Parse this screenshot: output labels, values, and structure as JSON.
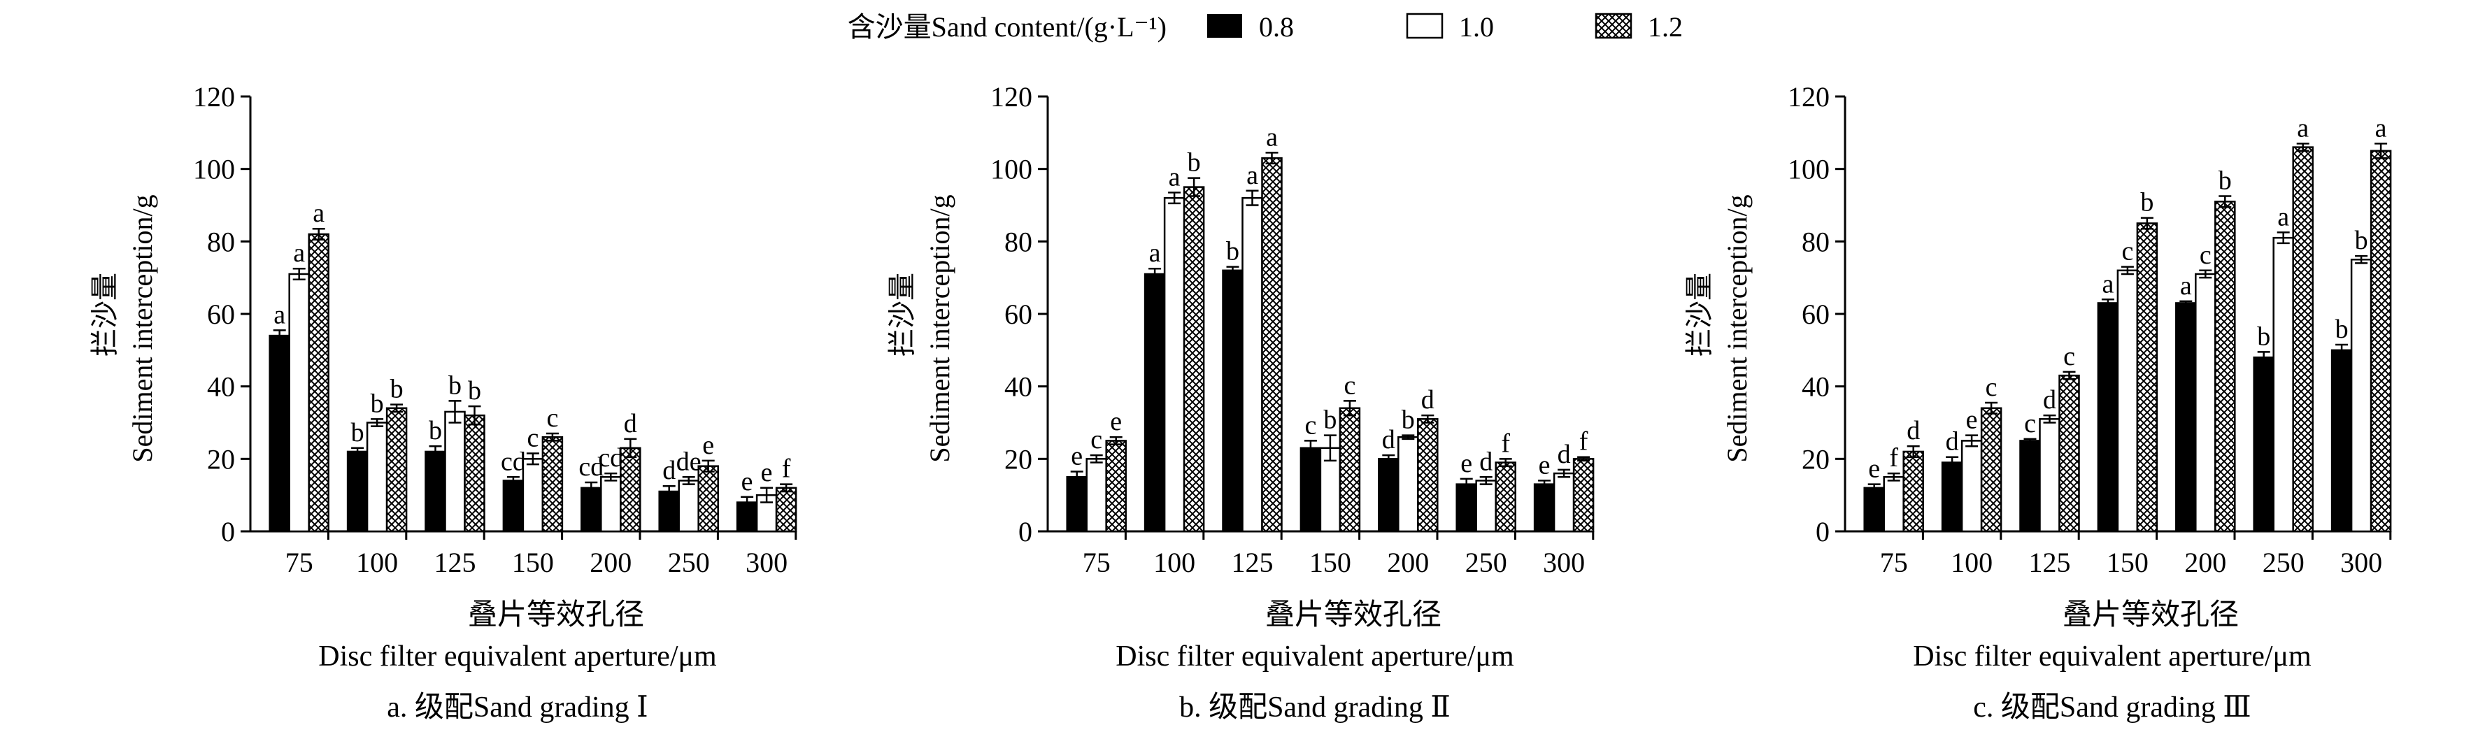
{
  "legend": {
    "title": "含沙量Sand content/(g·L⁻¹)",
    "items": [
      {
        "label": "0.8",
        "pattern": "solid-black"
      },
      {
        "label": "1.0",
        "pattern": "white"
      },
      {
        "label": "1.2",
        "pattern": "crosshatch"
      }
    ]
  },
  "colors": {
    "ink": "#000000",
    "paper": "#ffffff"
  },
  "chart_data": [
    {
      "type": "bar",
      "panel_caption": "a. 级配Sand grading Ⅰ",
      "xlabel_cn": "叠片等效孔径",
      "xlabel": "Disc filter equivalent aperture/μm",
      "ylabel_cn": "拦沙量",
      "ylabel": "Sediment interception/g",
      "ylim": [
        0,
        120
      ],
      "yticks": [
        0,
        20,
        40,
        60,
        80,
        100,
        120
      ],
      "categories": [
        "75",
        "100",
        "125",
        "150",
        "200",
        "250",
        "300"
      ],
      "series": [
        {
          "name": "0.8",
          "values": [
            54,
            22,
            22,
            14,
            12,
            11,
            8
          ],
          "errors": [
            1.5,
            1,
            1.5,
            1,
            1.5,
            1.5,
            1.5
          ],
          "labels": [
            "a",
            "b",
            "b",
            "cd",
            "cd",
            "d",
            "e"
          ]
        },
        {
          "name": "1.0",
          "values": [
            71,
            30,
            33,
            20,
            15,
            14,
            10
          ],
          "errors": [
            1.5,
            1,
            3,
            1.5,
            1,
            1,
            2
          ],
          "labels": [
            "a",
            "b",
            "b",
            "c",
            "cd",
            "de",
            "e"
          ]
        },
        {
          "name": "1.2",
          "values": [
            82,
            34,
            32,
            26,
            23,
            18,
            12
          ],
          "errors": [
            1.5,
            1,
            2.5,
            1,
            2.5,
            1.5,
            1
          ],
          "labels": [
            "a",
            "b",
            "b",
            "c",
            "d",
            "e",
            "f"
          ]
        }
      ]
    },
    {
      "type": "bar",
      "panel_caption": "b. 级配Sand grading Ⅱ",
      "xlabel_cn": "叠片等效孔径",
      "xlabel": "Disc filter equivalent aperture/μm",
      "ylabel_cn": "拦沙量",
      "ylabel": "Sediment interception/g",
      "ylim": [
        0,
        120
      ],
      "yticks": [
        0,
        20,
        40,
        60,
        80,
        100,
        120
      ],
      "categories": [
        "75",
        "100",
        "125",
        "150",
        "200",
        "250",
        "300"
      ],
      "series": [
        {
          "name": "0.8",
          "values": [
            15,
            71,
            72,
            23,
            20,
            13,
            13
          ],
          "errors": [
            1.5,
            1.5,
            1,
            2,
            1,
            1.5,
            1
          ],
          "labels": [
            "e",
            "a",
            "b",
            "c",
            "d",
            "e",
            "e"
          ]
        },
        {
          "name": "1.0",
          "values": [
            20,
            92,
            92,
            23,
            26,
            14,
            16
          ],
          "errors": [
            1,
            1.5,
            2,
            3.5,
            0.5,
            1,
            1
          ],
          "labels": [
            "c",
            "a",
            "a",
            "b",
            "b",
            "d",
            "d"
          ]
        },
        {
          "name": "1.2",
          "values": [
            25,
            95,
            103,
            34,
            31,
            19,
            20
          ],
          "errors": [
            1,
            2.5,
            1.5,
            2,
            1,
            1,
            0.5
          ],
          "labels": [
            "e",
            "b",
            "a",
            "c",
            "d",
            "f",
            "f"
          ]
        }
      ]
    },
    {
      "type": "bar",
      "panel_caption": "c. 级配Sand grading Ⅲ",
      "xlabel_cn": "叠片等效孔径",
      "xlabel": "Disc filter equivalent aperture/μm",
      "ylabel_cn": "拦沙量",
      "ylabel": "Sediment interception/g",
      "ylim": [
        0,
        120
      ],
      "yticks": [
        0,
        20,
        40,
        60,
        80,
        100,
        120
      ],
      "categories": [
        "75",
        "100",
        "125",
        "150",
        "200",
        "250",
        "300"
      ],
      "series": [
        {
          "name": "0.8",
          "values": [
            12,
            19,
            25,
            63,
            63,
            48,
            50
          ],
          "errors": [
            1,
            1.5,
            0.5,
            1,
            0.5,
            1.5,
            1.5
          ],
          "labels": [
            "e",
            "d",
            "c",
            "a",
            "a",
            "b",
            "b"
          ]
        },
        {
          "name": "1.0",
          "values": [
            15,
            25,
            31,
            72,
            71,
            81,
            75
          ],
          "errors": [
            1,
            1.5,
            1,
            1,
            1,
            1.5,
            1
          ],
          "labels": [
            "f",
            "e",
            "d",
            "c",
            "c",
            "a",
            "b"
          ]
        },
        {
          "name": "1.2",
          "values": [
            22,
            34,
            43,
            85,
            91,
            106,
            105
          ],
          "errors": [
            1.5,
            1.5,
            1,
            1.5,
            1.5,
            1,
            2
          ],
          "labels": [
            "d",
            "c",
            "c",
            "b",
            "b",
            "a",
            "a"
          ]
        }
      ]
    }
  ]
}
